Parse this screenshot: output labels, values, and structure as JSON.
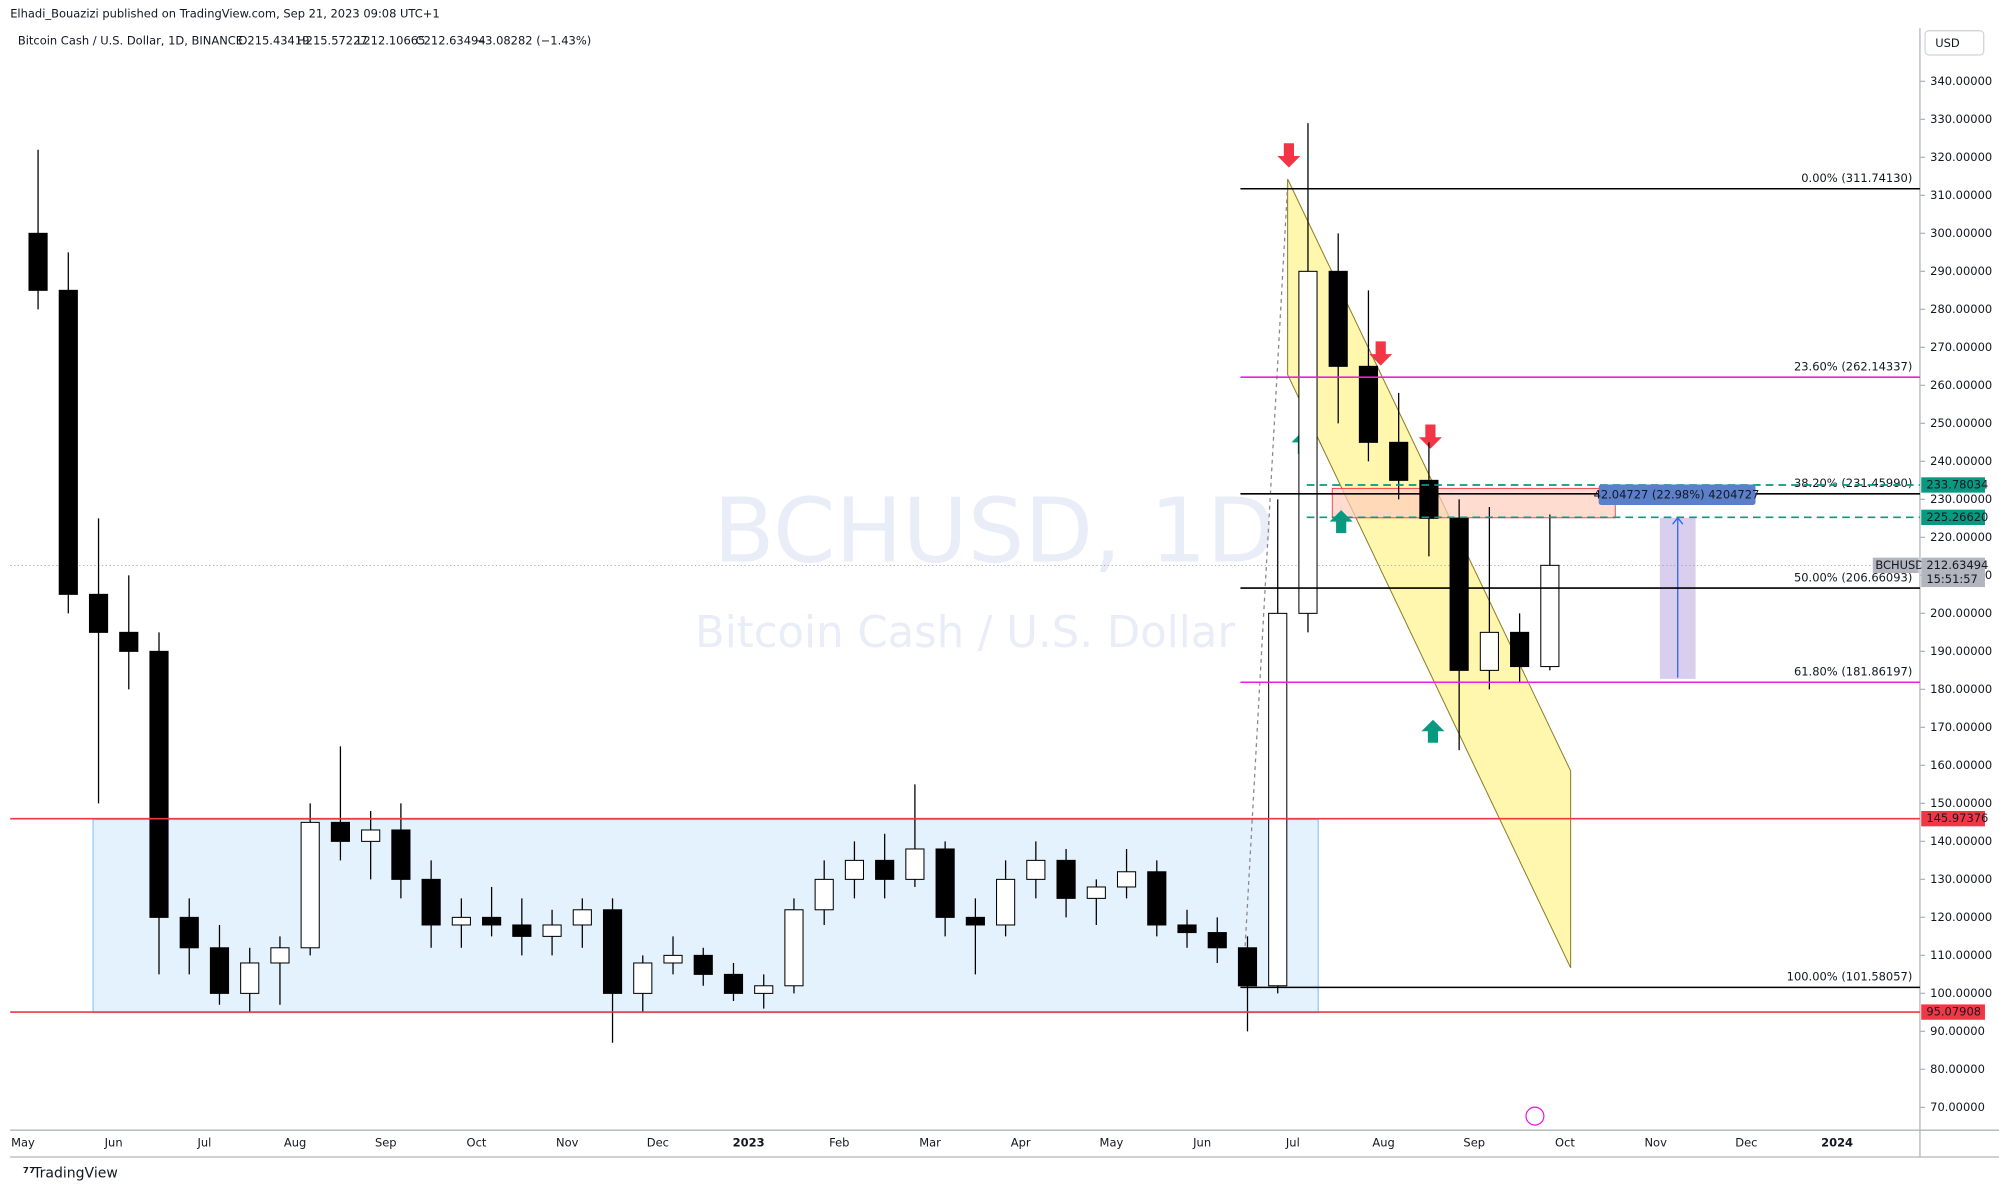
{
  "header": {
    "publisher": "Elhadi_Bouazizi published on TradingView.com, Sep 21, 2023 09:08 UTC+1",
    "currency": "USD"
  },
  "footer": {
    "brand": "TradingView"
  },
  "chart_data": {
    "type": "candlestick",
    "title": "Bitcoin Cash / U.S. Dollar, 1D, BINANCE",
    "ohlc": [
      "O215.43419",
      "H215.57227",
      "L212.10665",
      "C212.63494",
      "−3.08282 (−1.43%)"
    ],
    "watermark": [
      "BCHUSD, 1D",
      "Bitcoin Cash / U.S. Dollar"
    ],
    "categories": [
      "May",
      null,
      null,
      "Jun",
      null,
      null,
      "Jul",
      null,
      null,
      "Aug",
      null,
      null,
      "Sep",
      null,
      null,
      "Oct",
      null,
      null,
      "Nov",
      null,
      null,
      "Dec",
      null,
      null,
      "2023",
      null,
      null,
      "Feb",
      null,
      null,
      "Mar",
      null,
      null,
      "Apr",
      null,
      null,
      "May",
      null,
      null,
      "Jun",
      null,
      null,
      "Jul",
      null,
      null,
      "Aug",
      null,
      null,
      "Sep",
      null,
      null,
      "Oct",
      null,
      null,
      "Nov",
      null,
      null,
      "Dec",
      null,
      null,
      "2024",
      null,
      null
    ],
    "open": [
      300,
      285,
      205,
      195,
      190,
      120,
      112,
      100,
      108,
      112,
      145,
      140,
      143,
      130,
      118,
      120,
      118,
      115,
      118,
      122,
      100,
      108,
      110,
      105,
      100,
      102,
      122,
      130,
      135,
      130,
      138,
      120,
      118,
      130,
      135,
      125,
      128,
      132,
      118,
      116,
      112,
      102,
      200,
      290,
      265,
      245,
      235,
      225,
      185,
      195,
      186,
      null,
      null,
      null,
      null,
      null,
      null,
      null,
      null,
      null,
      null,
      null,
      null
    ],
    "high": [
      322,
      295,
      225,
      210,
      195,
      125,
      118,
      112,
      115,
      150,
      165,
      148,
      150,
      135,
      125,
      128,
      125,
      122,
      125,
      125,
      110,
      115,
      112,
      108,
      105,
      125,
      135,
      140,
      142,
      155,
      140,
      125,
      135,
      140,
      138,
      130,
      138,
      135,
      122,
      120,
      115,
      230,
      329,
      300,
      285,
      258,
      245,
      230,
      228,
      200,
      226,
      null,
      null,
      null,
      null,
      null,
      null,
      null,
      null,
      null,
      null,
      null,
      null
    ],
    "low": [
      280,
      200,
      150,
      180,
      105,
      105,
      97,
      95,
      97,
      110,
      135,
      130,
      125,
      112,
      112,
      115,
      110,
      110,
      112,
      87,
      95,
      105,
      102,
      98,
      96,
      100,
      118,
      125,
      125,
      128,
      115,
      105,
      115,
      125,
      120,
      118,
      125,
      115,
      112,
      108,
      90,
      100,
      195,
      250,
      240,
      230,
      215,
      164,
      180,
      182,
      185,
      null,
      null,
      null,
      null,
      null,
      null,
      null,
      null,
      null,
      null,
      null,
      null
    ],
    "close": [
      285,
      205,
      195,
      190,
      120,
      112,
      100,
      108,
      112,
      145,
      140,
      143,
      130,
      118,
      120,
      118,
      115,
      118,
      122,
      100,
      108,
      110,
      105,
      100,
      102,
      122,
      130,
      135,
      130,
      138,
      120,
      118,
      130,
      135,
      125,
      128,
      132,
      118,
      116,
      112,
      102,
      200,
      290,
      265,
      245,
      235,
      225,
      185,
      195,
      186,
      212.63494,
      null,
      null,
      null,
      null,
      null,
      null,
      null,
      null,
      null,
      null,
      null,
      null
    ],
    "ylim": [
      64,
      354
    ],
    "yticks": [
      {
        "value": 70,
        "label": "70.00000"
      },
      {
        "value": 80,
        "label": "80.00000"
      },
      {
        "value": 90,
        "label": "90.00000"
      },
      {
        "value": 100,
        "label": "100.00000"
      },
      {
        "value": 110,
        "label": "110.00000"
      },
      {
        "value": 120,
        "label": "120.00000"
      },
      {
        "value": 130,
        "label": "130.00000"
      },
      {
        "value": 140,
        "label": "140.00000"
      },
      {
        "value": 150,
        "label": "150.00000"
      },
      {
        "value": 160,
        "label": "160.00000"
      },
      {
        "value": 170,
        "label": "170.00000"
      },
      {
        "value": 180,
        "label": "180.00000"
      },
      {
        "value": 190,
        "label": "190.00000"
      },
      {
        "value": 200,
        "label": "200.00000"
      },
      {
        "value": 210,
        "label": "210.00000"
      },
      {
        "value": 220,
        "label": "220.00000"
      },
      {
        "value": 230,
        "label": "230.00000"
      },
      {
        "value": 240,
        "label": "240.00000"
      },
      {
        "value": 250,
        "label": "250.00000"
      },
      {
        "value": 260,
        "label": "260.00000"
      },
      {
        "value": 270,
        "label": "270.00000"
      },
      {
        "value": 280,
        "label": "280.00000"
      },
      {
        "value": 290,
        "label": "290.00000"
      },
      {
        "value": 300,
        "label": "300.00000"
      },
      {
        "value": 310,
        "label": "310.00000"
      },
      {
        "value": 320,
        "label": "320.00000"
      },
      {
        "value": 330,
        "label": "330.00000"
      },
      {
        "value": 340,
        "label": "340.00000"
      }
    ],
    "fib_levels": [
      {
        "value": 311.7413,
        "label": "0.00% (311.74130)",
        "color": "#000000"
      },
      {
        "value": 262.14337,
        "label": "23.60% (262.14337)",
        "color": "#e91ee3"
      },
      {
        "value": 231.4599,
        "label": "38.20% (231.45990)",
        "color": "#000000"
      },
      {
        "value": 206.66093,
        "label": "50.00% (206.66093)",
        "color": "#000000"
      },
      {
        "value": 181.86197,
        "label": "61.80% (181.86197)",
        "color": "#e91ee3"
      },
      {
        "value": 101.58057,
        "label": "100.00% (101.58057)",
        "color": "#000000"
      }
    ],
    "hlines": [
      {
        "value": 145.97376,
        "label": "145.97376",
        "color": "#f23645"
      },
      {
        "value": 95.07908,
        "label": "95.07908",
        "color": "#f23645"
      }
    ],
    "dashed_lines": [
      {
        "value": 233.78034,
        "label": "233.78034",
        "color": "#089981"
      },
      {
        "value": 225.2662,
        "label": "225.26620",
        "color": "#089981"
      }
    ],
    "current": {
      "symbol": "BCHUSD",
      "value": 212.63494,
      "countdown": "15:51:57"
    },
    "measure": {
      "label": "42.04727 (22.98%) 4204727"
    }
  }
}
